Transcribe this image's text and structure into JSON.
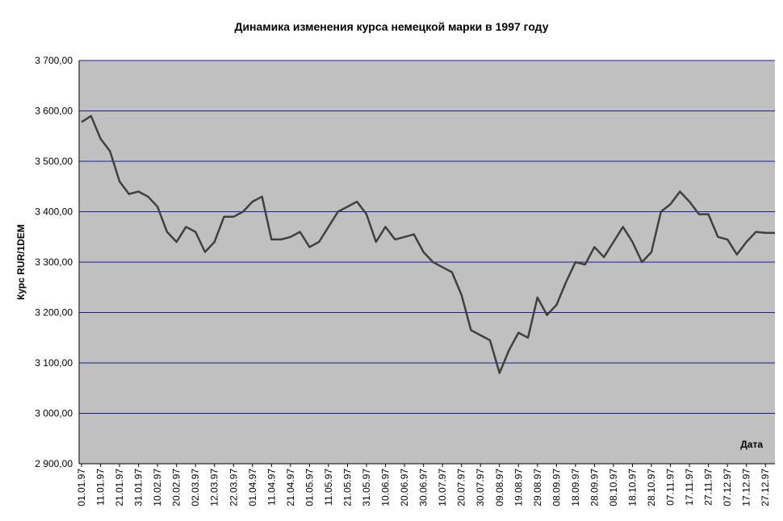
{
  "chart_data": {
    "type": "line",
    "title": "Динамика изменения курса немецкой марки в 1997 году",
    "y_label": "Курс RUR/1DEM",
    "x_label": "Дата",
    "categories": [
      "01.01.97",
      null,
      "11.01.97",
      null,
      "21.01.97",
      null,
      "31.01.97",
      null,
      "10.02.97",
      null,
      "20.02.97",
      null,
      "02.03.97",
      null,
      "12.03.97",
      null,
      "22.03.97",
      null,
      "01.04.97",
      null,
      "11.04.97",
      null,
      "21.04.97",
      null,
      "01.05.97",
      null,
      "11.05.97",
      null,
      "21.05.97",
      null,
      "31.05.97",
      null,
      "10.06.97",
      null,
      "20.06.97",
      null,
      "30.06.97",
      null,
      "10.07.97",
      null,
      "20.07.97",
      null,
      "30.07.97",
      null,
      "09.08.97",
      null,
      "19.08.97",
      null,
      "29.08.97",
      null,
      "08.09.97",
      null,
      "18.09.97",
      null,
      "28.09.97",
      null,
      "08.10.97",
      null,
      "18.10.97",
      null,
      "28.10.97",
      null,
      "07.11.97",
      null,
      "17.11.97",
      null,
      "27.11.97",
      null,
      "07.12.97",
      null,
      "17.12.97",
      null,
      "27.12.97",
      null
    ],
    "series": [
      {
        "color": "#404040",
        "values": [
          3578,
          3590,
          3545,
          3520,
          3460,
          3435,
          3440,
          3430,
          3410,
          3360,
          3340,
          3370,
          3360,
          3320,
          3340,
          3390,
          3390,
          3400,
          3420,
          3430,
          3345,
          3345,
          3350,
          3360,
          3330,
          3340,
          3370,
          3400,
          3410,
          3420,
          3395,
          3340,
          3370,
          3345,
          3350,
          3355,
          3320,
          3300,
          3290,
          3280,
          3235,
          3165,
          3155,
          3145,
          3080,
          3125,
          3160,
          3150,
          3230,
          3195,
          3215,
          3260,
          3300,
          3295,
          3330,
          3310,
          3340,
          3370,
          3340,
          3300,
          3320,
          3400,
          3415,
          3440,
          3420,
          3395,
          3395,
          3350,
          3345,
          3315,
          3340,
          3360,
          3358,
          3358
        ]
      }
    ],
    "ylim": [
      2900,
      3700
    ],
    "yticks": [
      {
        "value": 2900,
        "label": "2 900,00"
      },
      {
        "value": 3000,
        "label": "3 000,00"
      },
      {
        "value": 3100,
        "label": "3 100,00"
      },
      {
        "value": 3200,
        "label": "3 200,00"
      },
      {
        "value": 3300,
        "label": "3 300,00"
      },
      {
        "value": 3400,
        "label": "3 400,00"
      },
      {
        "value": 3500,
        "label": "3 500,00"
      },
      {
        "value": 3600,
        "label": "3 600,00"
      },
      {
        "value": 3700,
        "label": "3 700,00"
      }
    ],
    "grid": true,
    "background": "#c0c0c0",
    "grid_color": "#1a1aa0"
  }
}
